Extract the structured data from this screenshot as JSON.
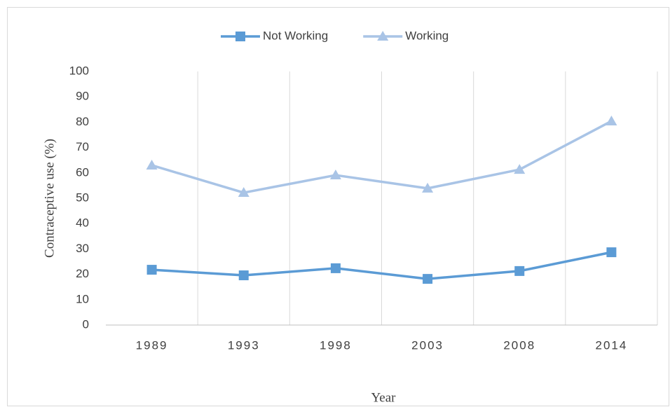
{
  "chart_data": {
    "type": "line",
    "categories": [
      "1989",
      "1993",
      "1998",
      "2003",
      "2008",
      "2014"
    ],
    "series": [
      {
        "name": "Not Working",
        "color": "#5b9bd5",
        "marker": "square",
        "values": [
          21.8,
          19.6,
          22.4,
          18.2,
          21.3,
          28.7
        ]
      },
      {
        "name": "Working",
        "color": "#a9c4e6",
        "marker": "triangle",
        "values": [
          63,
          52.2,
          59.1,
          53.9,
          61.3,
          80.4
        ]
      }
    ],
    "ylabel": "Contraceptive use (%)",
    "xlabel": "Year",
    "ylim": [
      0,
      100
    ],
    "yticks": [
      0,
      10,
      20,
      30,
      40,
      50,
      60,
      70,
      80,
      90,
      100
    ],
    "grid": "x",
    "legend": "top"
  }
}
